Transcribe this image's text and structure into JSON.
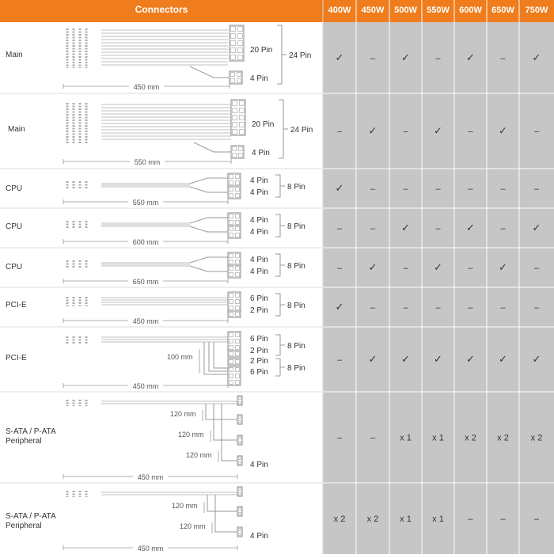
{
  "header": {
    "connectors": "Connectors",
    "wattages": [
      "400W",
      "450W",
      "500W",
      "550W",
      "600W",
      "650W",
      "750W"
    ]
  },
  "colors": {
    "header_orange": "#ef7d1d",
    "grid_gray": "#c6c6c6",
    "line_gray": "#999999"
  },
  "rows": [
    {
      "label": "Main",
      "length": "450 mm",
      "pins": [
        "20 Pin",
        "4 Pin"
      ],
      "total": "24 Pin",
      "sub_lengths": [],
      "values": [
        "✓",
        "–",
        "✓",
        "–",
        "✓",
        "–",
        "✓"
      ]
    },
    {
      "label": "Main",
      "length": "550 mm",
      "pins": [
        "20 Pin",
        "4 Pin"
      ],
      "total": "24 Pin",
      "sub_lengths": [],
      "values": [
        "–",
        "✓",
        "–",
        "✓",
        "–",
        "✓",
        "–"
      ]
    },
    {
      "label": "CPU",
      "length": "550 mm",
      "pins": [
        "4 Pin",
        "4 Pin"
      ],
      "total": "8 Pin",
      "sub_lengths": [],
      "values": [
        "✓",
        "–",
        "–",
        "–",
        "–",
        "–",
        "–"
      ]
    },
    {
      "label": "CPU",
      "length": "600 mm",
      "pins": [
        "4 Pin",
        "4 Pin"
      ],
      "total": "8 Pin",
      "sub_lengths": [],
      "values": [
        "–",
        "–",
        "✓",
        "–",
        "✓",
        "–",
        "✓"
      ]
    },
    {
      "label": "CPU",
      "length": "650 mm",
      "pins": [
        "4 Pin",
        "4 Pin"
      ],
      "total": "8 Pin",
      "sub_lengths": [],
      "values": [
        "–",
        "✓",
        "–",
        "✓",
        "–",
        "✓",
        "–"
      ]
    },
    {
      "label": "PCI-E",
      "length": "450 mm",
      "pins": [
        "6 Pin",
        "2 Pin"
      ],
      "total": "8 Pin",
      "sub_lengths": [],
      "values": [
        "✓",
        "–",
        "–",
        "–",
        "–",
        "–",
        "–"
      ]
    },
    {
      "label": "PCI-E",
      "length": "450 mm",
      "pins": [
        "6 Pin",
        "2 Pin",
        "2 Pin",
        "6 Pin"
      ],
      "totals": [
        "8 Pin",
        "8 Pin"
      ],
      "sub_lengths": [
        "100 mm"
      ],
      "values": [
        "–",
        "✓",
        "✓",
        "✓",
        "✓",
        "✓",
        "✓"
      ]
    },
    {
      "label": "S-ATA / P-ATA Peripheral",
      "length": "450 mm",
      "pins": [
        "4 Pin"
      ],
      "total": "",
      "sub_lengths": [
        "120 mm",
        "120 mm",
        "120 mm"
      ],
      "values": [
        "–",
        "–",
        "x 1",
        "x 1",
        "x 2",
        "x 2",
        "x 2"
      ]
    },
    {
      "label": "S-ATA / P-ATA Peripheral",
      "length": "450 mm",
      "pins": [
        "4 Pin"
      ],
      "total": "",
      "sub_lengths": [
        "120 mm",
        "120 mm"
      ],
      "values": [
        "x 2",
        "x 2",
        "x 1",
        "x 1",
        "–",
        "–",
        "–"
      ]
    }
  ]
}
